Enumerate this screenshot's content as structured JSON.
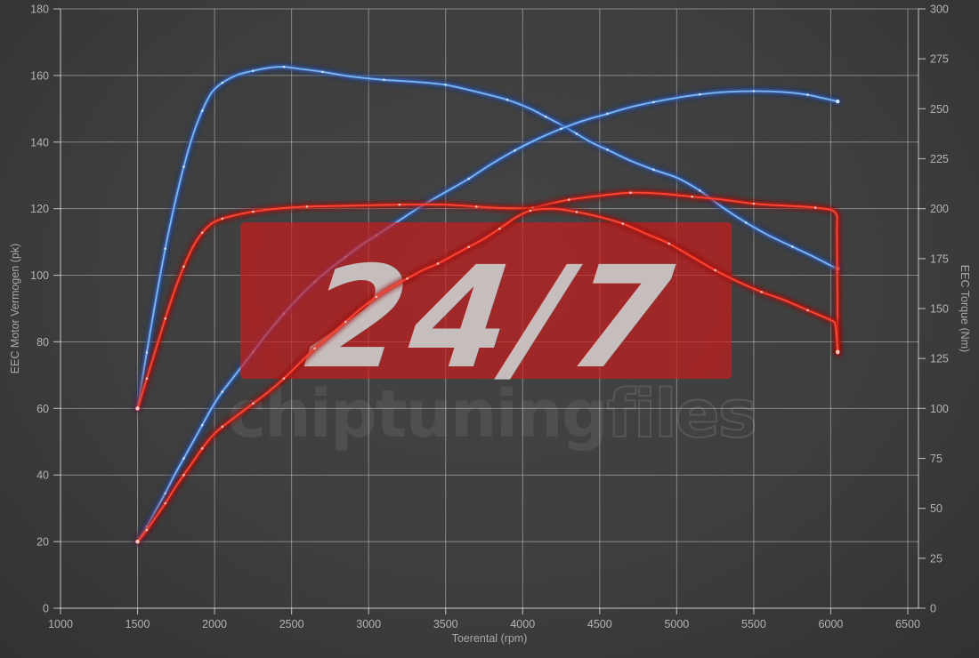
{
  "watermark": {
    "badge_text": "24/7",
    "brand_filled": "chiptuning",
    "brand_outline": "files",
    "badge_color": "#cd1a1a"
  },
  "axes": {
    "x": {
      "label": "Toerental (rpm)",
      "min": 1000,
      "max": 6500,
      "ticks": [
        1000,
        1500,
        2000,
        2500,
        3000,
        3500,
        4000,
        4500,
        5000,
        5500,
        6000,
        6500
      ]
    },
    "y_left": {
      "label": "EEC Motor Vermogen (pk)",
      "min": 0,
      "max": 180,
      "ticks": [
        0,
        20,
        40,
        60,
        80,
        100,
        120,
        140,
        160,
        180
      ]
    },
    "y_right": {
      "label": "EEC Torque (Nm)",
      "min": 0,
      "max": 300,
      "ticks": [
        0,
        25,
        50,
        75,
        100,
        125,
        150,
        175,
        200,
        225,
        250,
        275,
        300
      ]
    }
  },
  "chart_data": {
    "type": "line",
    "title": "",
    "xlabel": "Toerental (rpm)",
    "ylabel_left": "EEC Motor Vermogen (pk)",
    "ylabel_right": "EEC Torque (Nm)",
    "x_range": [
      1000,
      6500
    ],
    "y_left_range": [
      0,
      180
    ],
    "y_right_range": [
      0,
      300
    ],
    "grid": true,
    "legend": "none",
    "series": [
      {
        "name": "blue_torque_nm",
        "axis": "right",
        "unit": "Nm",
        "color_core": "#7db7f5",
        "color_mid": "rgba(64,124,215,0.55)",
        "color_glow": "rgba(18,55,140,0.5)",
        "marker_color": "#d9eaff",
        "points": [
          [
            1500,
            100
          ],
          [
            1560,
            128
          ],
          [
            1620,
            155
          ],
          [
            1680,
            180
          ],
          [
            1740,
            202
          ],
          [
            1800,
            221
          ],
          [
            1860,
            237
          ],
          [
            1920,
            249
          ],
          [
            1980,
            258
          ],
          [
            2050,
            263
          ],
          [
            2150,
            267
          ],
          [
            2250,
            269
          ],
          [
            2350,
            270.5
          ],
          [
            2450,
            271
          ],
          [
            2550,
            270
          ],
          [
            2700,
            268.5
          ],
          [
            2900,
            266
          ],
          [
            3100,
            264.5
          ],
          [
            3300,
            263.5
          ],
          [
            3500,
            262
          ],
          [
            3700,
            258.5
          ],
          [
            3900,
            254.5
          ],
          [
            4050,
            250
          ],
          [
            4150,
            246
          ],
          [
            4250,
            242
          ],
          [
            4350,
            237.5
          ],
          [
            4450,
            233
          ],
          [
            4550,
            229.5
          ],
          [
            4700,
            224
          ],
          [
            4850,
            219.5
          ],
          [
            5000,
            215.5
          ],
          [
            5150,
            209
          ],
          [
            5300,
            200.5
          ],
          [
            5450,
            193
          ],
          [
            5600,
            186.5
          ],
          [
            5750,
            181
          ],
          [
            5900,
            175.5
          ],
          [
            6000,
            171.5
          ],
          [
            6045,
            170
          ]
        ]
      },
      {
        "name": "blue_power_pk",
        "axis": "left",
        "unit": "pk",
        "color_core": "#7db7f5",
        "color_mid": "rgba(64,124,215,0.55)",
        "color_glow": "rgba(18,55,140,0.5)",
        "marker_color": "#d9eaff",
        "points": [
          [
            1500,
            20
          ],
          [
            1560,
            24.5
          ],
          [
            1620,
            29.5
          ],
          [
            1680,
            34.5
          ],
          [
            1740,
            40
          ],
          [
            1800,
            45
          ],
          [
            1860,
            50
          ],
          [
            1920,
            55
          ],
          [
            1980,
            60
          ],
          [
            2050,
            65
          ],
          [
            2150,
            71
          ],
          [
            2250,
            77
          ],
          [
            2350,
            83
          ],
          [
            2450,
            88.5
          ],
          [
            2550,
            93.5
          ],
          [
            2650,
            98
          ],
          [
            2750,
            102
          ],
          [
            2850,
            105.5
          ],
          [
            2950,
            109
          ],
          [
            3050,
            112
          ],
          [
            3200,
            116.5
          ],
          [
            3350,
            121
          ],
          [
            3500,
            125
          ],
          [
            3650,
            129
          ],
          [
            3800,
            133.5
          ],
          [
            3950,
            137.5
          ],
          [
            4100,
            141
          ],
          [
            4250,
            144
          ],
          [
            4400,
            146.5
          ],
          [
            4550,
            148.5
          ],
          [
            4700,
            150.5
          ],
          [
            4850,
            152
          ],
          [
            5000,
            153.3
          ],
          [
            5150,
            154.3
          ],
          [
            5300,
            155
          ],
          [
            5500,
            155.3
          ],
          [
            5700,
            155
          ],
          [
            5850,
            154.2
          ],
          [
            5950,
            153.2
          ],
          [
            6045,
            152.2
          ]
        ]
      },
      {
        "name": "red_torque_nm",
        "axis": "right",
        "unit": "Nm",
        "color_core": "#ff4636",
        "color_mid": "rgba(215,35,25,0.6)",
        "color_glow": "rgba(140,10,10,0.5)",
        "marker_color": "#ffd2c8",
        "points": [
          [
            1500,
            100
          ],
          [
            1560,
            115
          ],
          [
            1620,
            130
          ],
          [
            1680,
            145
          ],
          [
            1740,
            159
          ],
          [
            1800,
            171
          ],
          [
            1860,
            181
          ],
          [
            1920,
            188
          ],
          [
            1980,
            192.5
          ],
          [
            2050,
            195
          ],
          [
            2150,
            197
          ],
          [
            2250,
            198.5
          ],
          [
            2400,
            200
          ],
          [
            2600,
            201
          ],
          [
            2900,
            201.5
          ],
          [
            3200,
            202
          ],
          [
            3500,
            202
          ],
          [
            3700,
            201
          ],
          [
            3900,
            200.2
          ],
          [
            4065,
            200.5
          ],
          [
            4150,
            202
          ],
          [
            4300,
            204.5
          ],
          [
            4500,
            206.5
          ],
          [
            4700,
            208
          ],
          [
            4900,
            207.5
          ],
          [
            5100,
            206
          ],
          [
            5300,
            204.5
          ],
          [
            5500,
            202.5
          ],
          [
            5700,
            201.5
          ],
          [
            5900,
            200.5
          ],
          [
            6030,
            198
          ],
          [
            6040,
            186
          ],
          [
            6045,
            128
          ]
        ]
      },
      {
        "name": "red_power_pk",
        "axis": "left",
        "unit": "pk",
        "color_core": "#ff4636",
        "color_mid": "rgba(215,35,25,0.6)",
        "color_glow": "rgba(140,10,10,0.5)",
        "marker_color": "#ffd2c8",
        "points": [
          [
            1500,
            20
          ],
          [
            1560,
            23.5
          ],
          [
            1620,
            27.5
          ],
          [
            1680,
            31.5
          ],
          [
            1740,
            36
          ],
          [
            1800,
            40
          ],
          [
            1860,
            44
          ],
          [
            1920,
            48
          ],
          [
            1980,
            51.5
          ],
          [
            2050,
            54.5
          ],
          [
            2150,
            58
          ],
          [
            2250,
            61.5
          ],
          [
            2350,
            65
          ],
          [
            2450,
            69
          ],
          [
            2550,
            73.5
          ],
          [
            2650,
            78
          ],
          [
            2750,
            82
          ],
          [
            2850,
            86
          ],
          [
            2950,
            90
          ],
          [
            3050,
            93.5
          ],
          [
            3150,
            96.5
          ],
          [
            3250,
            99
          ],
          [
            3350,
            101.5
          ],
          [
            3450,
            103.5
          ],
          [
            3550,
            106
          ],
          [
            3650,
            108.5
          ],
          [
            3750,
            111
          ],
          [
            3850,
            114
          ],
          [
            3950,
            117.2
          ],
          [
            4050,
            119.4
          ],
          [
            4200,
            120
          ],
          [
            4350,
            119
          ],
          [
            4500,
            117.5
          ],
          [
            4650,
            115.5
          ],
          [
            4800,
            112.5
          ],
          [
            4950,
            109.5
          ],
          [
            5100,
            105.5
          ],
          [
            5250,
            101.5
          ],
          [
            5400,
            98
          ],
          [
            5550,
            95
          ],
          [
            5700,
            92.5
          ],
          [
            5850,
            89.5
          ],
          [
            6000,
            86.5
          ],
          [
            6030,
            85
          ],
          [
            6045,
            77
          ]
        ]
      }
    ]
  },
  "colors": {
    "background": "#3d3d3d",
    "grid": "rgba(255,255,255,0.38)",
    "axis": "rgba(255,255,255,0.58)",
    "tick_label": "#b4b4b4",
    "axis_title": "#a8a8a8",
    "blue_curve": "#7db7f5",
    "red_curve": "#ff4636",
    "watermark_box": "#cd1a1a",
    "watermark_text": "#c9c9c9",
    "brand_text": "#4f4f4f"
  }
}
